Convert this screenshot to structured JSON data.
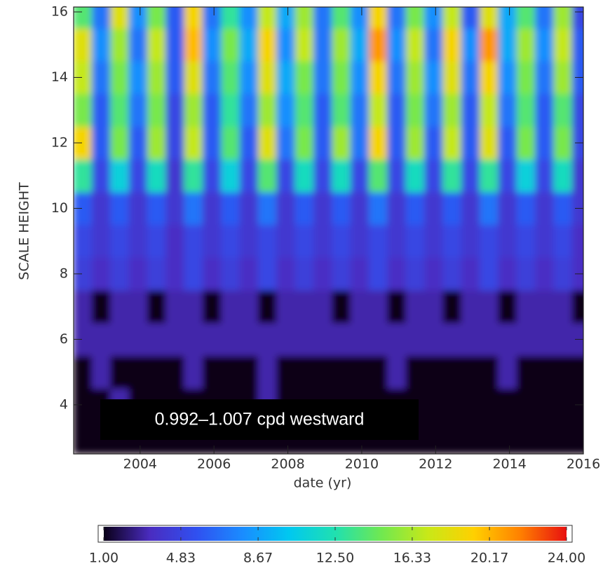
{
  "chart_data": {
    "type": "heatmap",
    "xlabel": "date (yr)",
    "ylabel": "SCALE HEIGHT",
    "annotation": "0.992–1.007 cpd westward",
    "xlim": [
      2002.2,
      2016
    ],
    "ylim": [
      2.5,
      16.15
    ],
    "xticks": [
      2004,
      2006,
      2008,
      2010,
      2012,
      2014,
      2016
    ],
    "yticks": [
      4,
      6,
      8,
      10,
      12,
      14,
      16
    ],
    "x": [
      2002.45,
      2002.95,
      2003.45,
      2003.95,
      2004.45,
      2004.95,
      2005.45,
      2005.95,
      2006.45,
      2006.95,
      2007.45,
      2007.95,
      2008.45,
      2008.95,
      2009.45,
      2009.95,
      2010.45,
      2010.95,
      2011.45,
      2011.95,
      2012.45,
      2012.95,
      2013.45,
      2013.95,
      2014.45,
      2014.95,
      2015.45,
      2015.95
    ],
    "y": [
      3,
      4,
      5,
      6,
      7,
      8,
      9,
      10,
      11,
      12,
      13,
      14,
      15,
      16
    ],
    "z": [
      [
        1,
        1,
        1,
        1,
        1,
        1,
        1,
        1,
        1,
        1,
        1,
        1,
        1,
        1,
        1,
        1,
        1,
        1,
        1,
        1,
        1,
        1,
        1,
        1,
        1,
        1,
        1,
        1
      ],
      [
        1,
        1,
        3,
        1,
        1,
        1,
        1,
        1,
        1,
        1,
        3,
        1,
        1,
        1,
        1,
        1,
        1,
        1,
        1,
        1,
        1,
        1,
        1,
        1,
        1,
        1,
        1,
        1
      ],
      [
        1,
        3,
        1,
        1,
        1,
        1,
        3,
        1,
        1,
        1,
        3,
        1,
        1,
        1,
        1,
        1,
        1,
        3,
        1,
        1,
        1,
        1,
        1,
        3,
        1,
        1,
        1,
        1
      ],
      [
        3,
        3,
        3,
        3,
        3,
        3,
        3,
        3,
        3,
        3,
        3,
        3,
        3,
        3,
        3,
        3,
        3,
        3,
        3,
        3,
        3,
        3,
        3,
        3,
        3,
        3,
        3,
        3
      ],
      [
        3,
        1,
        3,
        3,
        1,
        3,
        3,
        1,
        3,
        3,
        1,
        3,
        3,
        3,
        1,
        3,
        3,
        1,
        3,
        3,
        1,
        3,
        3,
        1,
        3,
        3,
        3,
        1
      ],
      [
        4.5,
        3.5,
        4.5,
        3.5,
        4.5,
        3.5,
        5,
        3.5,
        4.5,
        3.5,
        5,
        3.5,
        4.5,
        3.5,
        4.5,
        3.5,
        5,
        3.5,
        4.5,
        3.5,
        4.5,
        3.5,
        5,
        3.5,
        4.5,
        3.5,
        4.5,
        3.5
      ],
      [
        5,
        4,
        5,
        4,
        5,
        3.5,
        5,
        4,
        5,
        4,
        5,
        4,
        5,
        4,
        5,
        4,
        5,
        4,
        5,
        4,
        5,
        4,
        5,
        4,
        5,
        4,
        5,
        3.5
      ],
      [
        6,
        4,
        6,
        4,
        6,
        4,
        7,
        4,
        6,
        4,
        7,
        4,
        6,
        4,
        6,
        4,
        7,
        4,
        6,
        4,
        6,
        4,
        7,
        4,
        6,
        4,
        6,
        4
      ],
      [
        13,
        5,
        11,
        5,
        12,
        4,
        13,
        5,
        11,
        5,
        14,
        5,
        12,
        5,
        12,
        5,
        14,
        5,
        12,
        5,
        13,
        5,
        13,
        5,
        11,
        5,
        12,
        4
      ],
      [
        19,
        6,
        15,
        6,
        16,
        5,
        17,
        6,
        14,
        6,
        18,
        7,
        15,
        6,
        16,
        7,
        19,
        6,
        16,
        6,
        17,
        6,
        18,
        6,
        15,
        6,
        15,
        5
      ],
      [
        15,
        6,
        14,
        7,
        15,
        5,
        16,
        6,
        13,
        7,
        16,
        8,
        14,
        6,
        14,
        7,
        17,
        6,
        15,
        7,
        16,
        6,
        17,
        7,
        14,
        6,
        14,
        5
      ],
      [
        17,
        7,
        15,
        8,
        16,
        6,
        18,
        7,
        14,
        8,
        18,
        9,
        15,
        7,
        15,
        8,
        19,
        7,
        16,
        8,
        18,
        7,
        19,
        8,
        15,
        7,
        16,
        6
      ],
      [
        18,
        8,
        16,
        7,
        17,
        6,
        20,
        8,
        15,
        9,
        19,
        8,
        17,
        7,
        16,
        9,
        21,
        8,
        17,
        7,
        19,
        8,
        21,
        9,
        16,
        8,
        17,
        6
      ],
      [
        14,
        7,
        18,
        8,
        15,
        6,
        19,
        7,
        13,
        8,
        17,
        9,
        16,
        7,
        14,
        8,
        19,
        7,
        15,
        8,
        17,
        6,
        18,
        9,
        14,
        7,
        16,
        5
      ]
    ],
    "clim": [
      1,
      24
    ],
    "cticks": [
      {
        "value": 1,
        "label": "1.00"
      },
      {
        "value": 4.83,
        "label": "4.83"
      },
      {
        "value": 8.67,
        "label": "8.67"
      },
      {
        "value": 12.5,
        "label": "12.50"
      },
      {
        "value": 16.33,
        "label": "16.33"
      },
      {
        "value": 20.17,
        "label": "20.17"
      },
      {
        "value": 24,
        "label": "24.00"
      }
    ],
    "colormap": [
      "#0a0018",
      "#4a2cc0",
      "#3050f0",
      "#1a8cff",
      "#00c8f0",
      "#20e0b0",
      "#70e850",
      "#c8e818",
      "#ffd000",
      "#ff8000",
      "#e81010"
    ]
  }
}
